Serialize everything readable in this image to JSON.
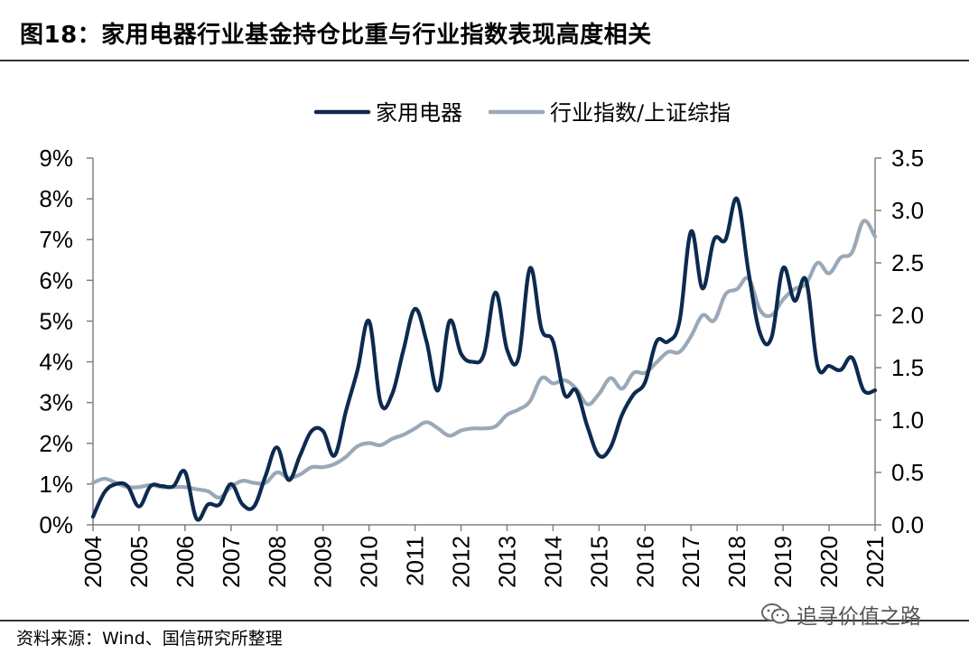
{
  "header": {
    "title": "图18：家用电器行业基金持仓比重与行业指数表现高度相关"
  },
  "footer": {
    "source": "资料来源：Wind、国信研究所整理",
    "watermark": "追寻价值之路",
    "watermark_icon": "wechat-icon"
  },
  "chart_data": {
    "type": "line",
    "title": "",
    "legend": {
      "placement": "top-right",
      "orientation": "horizontal"
    },
    "grid": false,
    "x_tick_labels": [
      "2004",
      "2005",
      "2006",
      "2007",
      "2008",
      "2009",
      "2010",
      "2011",
      "2012",
      "2013",
      "2014",
      "2015",
      "2016",
      "2017",
      "2018",
      "2019",
      "2020",
      "2021"
    ],
    "xlim": [
      2004,
      2021
    ],
    "y_left": {
      "min": 0,
      "max": 9,
      "ticks": [
        0,
        1,
        2,
        3,
        4,
        5,
        6,
        7,
        8,
        9
      ],
      "tick_labels": [
        "0%",
        "1%",
        "2%",
        "3%",
        "4%",
        "5%",
        "6%",
        "7%",
        "8%",
        "9%"
      ]
    },
    "y_right": {
      "min": 0,
      "max": 3.5,
      "ticks": [
        0,
        0.5,
        1,
        1.5,
        2,
        2.5,
        3,
        3.5
      ],
      "tick_labels": [
        "0.0",
        "0.5",
        "1.0",
        "1.5",
        "2.0",
        "2.5",
        "3.0",
        "3.5"
      ]
    },
    "series": [
      {
        "name": "家用电器",
        "axis": "left",
        "color": "#0d2a4f",
        "x": [
          2004.0,
          2004.25,
          2004.5,
          2004.75,
          2005.0,
          2005.25,
          2005.5,
          2005.75,
          2006.0,
          2006.25,
          2006.5,
          2006.75,
          2007.0,
          2007.25,
          2007.5,
          2007.75,
          2008.0,
          2008.25,
          2008.5,
          2008.75,
          2009.0,
          2009.25,
          2009.5,
          2009.75,
          2010.0,
          2010.25,
          2010.5,
          2010.75,
          2011.0,
          2011.25,
          2011.5,
          2011.75,
          2012.0,
          2012.25,
          2012.5,
          2012.75,
          2013.0,
          2013.25,
          2013.5,
          2013.75,
          2014.0,
          2014.25,
          2014.5,
          2014.75,
          2015.0,
          2015.25,
          2015.5,
          2015.75,
          2016.0,
          2016.25,
          2016.5,
          2016.75,
          2017.0,
          2017.25,
          2017.5,
          2017.75,
          2018.0,
          2018.25,
          2018.5,
          2018.75,
          2019.0,
          2019.25,
          2019.5,
          2019.75,
          2020.0,
          2020.25,
          2020.5,
          2020.75,
          2021.0
        ],
        "values": [
          0.2,
          0.8,
          1.0,
          0.95,
          0.45,
          0.95,
          0.95,
          0.95,
          1.3,
          0.15,
          0.5,
          0.5,
          1.0,
          0.5,
          0.45,
          1.2,
          1.9,
          1.1,
          1.7,
          2.3,
          2.3,
          1.7,
          2.8,
          3.8,
          5.0,
          3.0,
          3.2,
          4.3,
          5.3,
          4.5,
          3.3,
          5.0,
          4.2,
          4.0,
          4.2,
          5.7,
          4.3,
          4.1,
          6.3,
          4.8,
          4.5,
          3.2,
          3.3,
          2.4,
          1.7,
          1.9,
          2.7,
          3.2,
          3.5,
          4.5,
          4.5,
          5.0,
          7.2,
          5.8,
          7.0,
          7.0,
          8.0,
          6.2,
          4.7,
          4.6,
          6.3,
          5.5,
          6.0,
          3.9,
          3.9,
          3.8,
          4.1,
          3.3,
          3.3
        ]
      },
      {
        "name": "行业指数/上证综指",
        "axis": "right",
        "color": "#9aa9b8",
        "x": [
          2004.0,
          2004.25,
          2004.5,
          2004.75,
          2005.0,
          2005.25,
          2005.5,
          2005.75,
          2006.0,
          2006.25,
          2006.5,
          2006.75,
          2007.0,
          2007.25,
          2007.5,
          2007.75,
          2008.0,
          2008.25,
          2008.5,
          2008.75,
          2009.0,
          2009.25,
          2009.5,
          2009.75,
          2010.0,
          2010.25,
          2010.5,
          2010.75,
          2011.0,
          2011.25,
          2011.5,
          2011.75,
          2012.0,
          2012.25,
          2012.5,
          2012.75,
          2013.0,
          2013.25,
          2013.5,
          2013.75,
          2014.0,
          2014.25,
          2014.5,
          2014.75,
          2015.0,
          2015.25,
          2015.5,
          2015.75,
          2016.0,
          2016.25,
          2016.5,
          2016.75,
          2017.0,
          2017.25,
          2017.5,
          2017.75,
          2018.0,
          2018.25,
          2018.5,
          2018.75,
          2019.0,
          2019.25,
          2019.5,
          2019.75,
          2020.0,
          2020.25,
          2020.5,
          2020.75,
          2021.0
        ],
        "values": [
          0.4,
          0.44,
          0.4,
          0.36,
          0.36,
          0.38,
          0.36,
          0.36,
          0.36,
          0.34,
          0.32,
          0.26,
          0.36,
          0.42,
          0.4,
          0.4,
          0.5,
          0.45,
          0.48,
          0.55,
          0.55,
          0.58,
          0.65,
          0.75,
          0.78,
          0.76,
          0.82,
          0.86,
          0.92,
          0.98,
          0.92,
          0.85,
          0.9,
          0.92,
          0.92,
          0.94,
          1.05,
          1.1,
          1.18,
          1.4,
          1.35,
          1.38,
          1.3,
          1.15,
          1.25,
          1.4,
          1.3,
          1.45,
          1.45,
          1.55,
          1.65,
          1.65,
          1.8,
          2.0,
          1.95,
          2.2,
          2.25,
          2.35,
          2.05,
          2.0,
          2.15,
          2.25,
          2.3,
          2.5,
          2.4,
          2.55,
          2.6,
          2.9,
          2.75
        ]
      }
    ]
  }
}
